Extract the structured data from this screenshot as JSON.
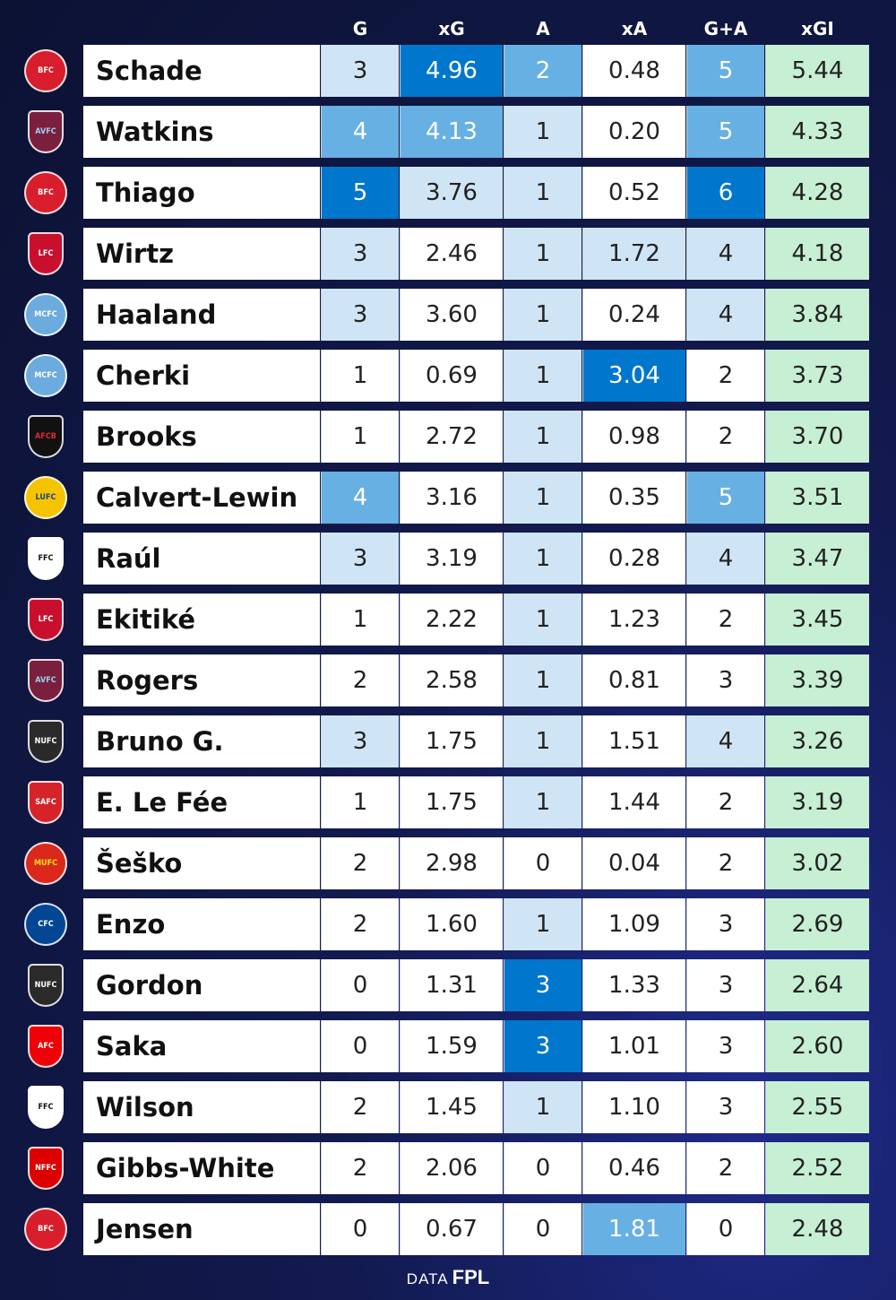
{
  "columns": [
    "G",
    "xG",
    "A",
    "xA",
    "G+A",
    "xGI"
  ],
  "colors": {
    "xgi_fill": "#c6efd3",
    "scale_max": "#0077cc",
    "scale_high": "#67b0e3",
    "scale_mid": "#cfe5f5",
    "plain": "#ffffff"
  },
  "chart_data": {
    "type": "table",
    "columns": [
      "G",
      "xG",
      "A",
      "xA",
      "G+A",
      "xGI"
    ],
    "rows": [
      {
        "player": "Schade",
        "club": "brentford-crest",
        "G": "3",
        "xG": "4.96",
        "A": "2",
        "xA": "0.48",
        "GA": "5",
        "xGI": "5.44"
      },
      {
        "player": "Watkins",
        "club": "aston-villa-crest",
        "G": "4",
        "xG": "4.13",
        "A": "1",
        "xA": "0.20",
        "GA": "5",
        "xGI": "4.33"
      },
      {
        "player": "Thiago",
        "club": "brentford-crest",
        "G": "5",
        "xG": "3.76",
        "A": "1",
        "xA": "0.52",
        "GA": "6",
        "xGI": "4.28"
      },
      {
        "player": "Wirtz",
        "club": "liverpool-crest",
        "G": "3",
        "xG": "2.46",
        "A": "1",
        "xA": "1.72",
        "GA": "4",
        "xGI": "4.18"
      },
      {
        "player": "Haaland",
        "club": "man-city-crest",
        "G": "3",
        "xG": "3.60",
        "A": "1",
        "xA": "0.24",
        "GA": "4",
        "xGI": "3.84"
      },
      {
        "player": "Cherki",
        "club": "man-city-crest",
        "G": "1",
        "xG": "0.69",
        "A": "1",
        "xA": "3.04",
        "GA": "2",
        "xGI": "3.73"
      },
      {
        "player": "Brooks",
        "club": "bournemouth-crest",
        "G": "1",
        "xG": "2.72",
        "A": "1",
        "xA": "0.98",
        "GA": "2",
        "xGI": "3.70"
      },
      {
        "player": "Calvert-Lewin",
        "club": "leeds-crest",
        "G": "4",
        "xG": "3.16",
        "A": "1",
        "xA": "0.35",
        "GA": "5",
        "xGI": "3.51"
      },
      {
        "player": "Raúl",
        "club": "fulham-crest",
        "G": "3",
        "xG": "3.19",
        "A": "1",
        "xA": "0.28",
        "GA": "4",
        "xGI": "3.47"
      },
      {
        "player": "Ekitiké",
        "club": "liverpool-crest",
        "G": "1",
        "xG": "2.22",
        "A": "1",
        "xA": "1.23",
        "GA": "2",
        "xGI": "3.45"
      },
      {
        "player": "Rogers",
        "club": "aston-villa-crest",
        "G": "2",
        "xG": "2.58",
        "A": "1",
        "xA": "0.81",
        "GA": "3",
        "xGI": "3.39"
      },
      {
        "player": "Bruno G.",
        "club": "newcastle-crest",
        "G": "3",
        "xG": "1.75",
        "A": "1",
        "xA": "1.51",
        "GA": "4",
        "xGI": "3.26"
      },
      {
        "player": "E. Le Fée",
        "club": "sunderland-crest",
        "G": "1",
        "xG": "1.75",
        "A": "1",
        "xA": "1.44",
        "GA": "2",
        "xGI": "3.19"
      },
      {
        "player": "Šeško",
        "club": "man-utd-crest",
        "G": "2",
        "xG": "2.98",
        "A": "0",
        "xA": "0.04",
        "GA": "2",
        "xGI": "3.02"
      },
      {
        "player": "Enzo",
        "club": "chelsea-crest",
        "G": "2",
        "xG": "1.60",
        "A": "1",
        "xA": "1.09",
        "GA": "3",
        "xGI": "2.69"
      },
      {
        "player": "Gordon",
        "club": "newcastle-crest",
        "G": "0",
        "xG": "1.31",
        "A": "3",
        "xA": "1.33",
        "GA": "3",
        "xGI": "2.64"
      },
      {
        "player": "Saka",
        "club": "arsenal-crest",
        "G": "0",
        "xG": "1.59",
        "A": "3",
        "xA": "1.01",
        "GA": "3",
        "xGI": "2.60"
      },
      {
        "player": "Wilson",
        "club": "fulham-crest",
        "G": "2",
        "xG": "1.45",
        "A": "1",
        "xA": "1.10",
        "GA": "3",
        "xGI": "2.55"
      },
      {
        "player": "Gibbs-White",
        "club": "nottm-forest-crest",
        "G": "2",
        "xG": "2.06",
        "A": "0",
        "xA": "0.46",
        "GA": "2",
        "xGI": "2.52"
      },
      {
        "player": "Jensen",
        "club": "brentford-crest",
        "G": "0",
        "xG": "0.67",
        "A": "0",
        "xA": "1.81",
        "GA": "0",
        "xGI": "2.48"
      }
    ]
  },
  "footer": {
    "label": "DATA",
    "brand": "FPL"
  }
}
